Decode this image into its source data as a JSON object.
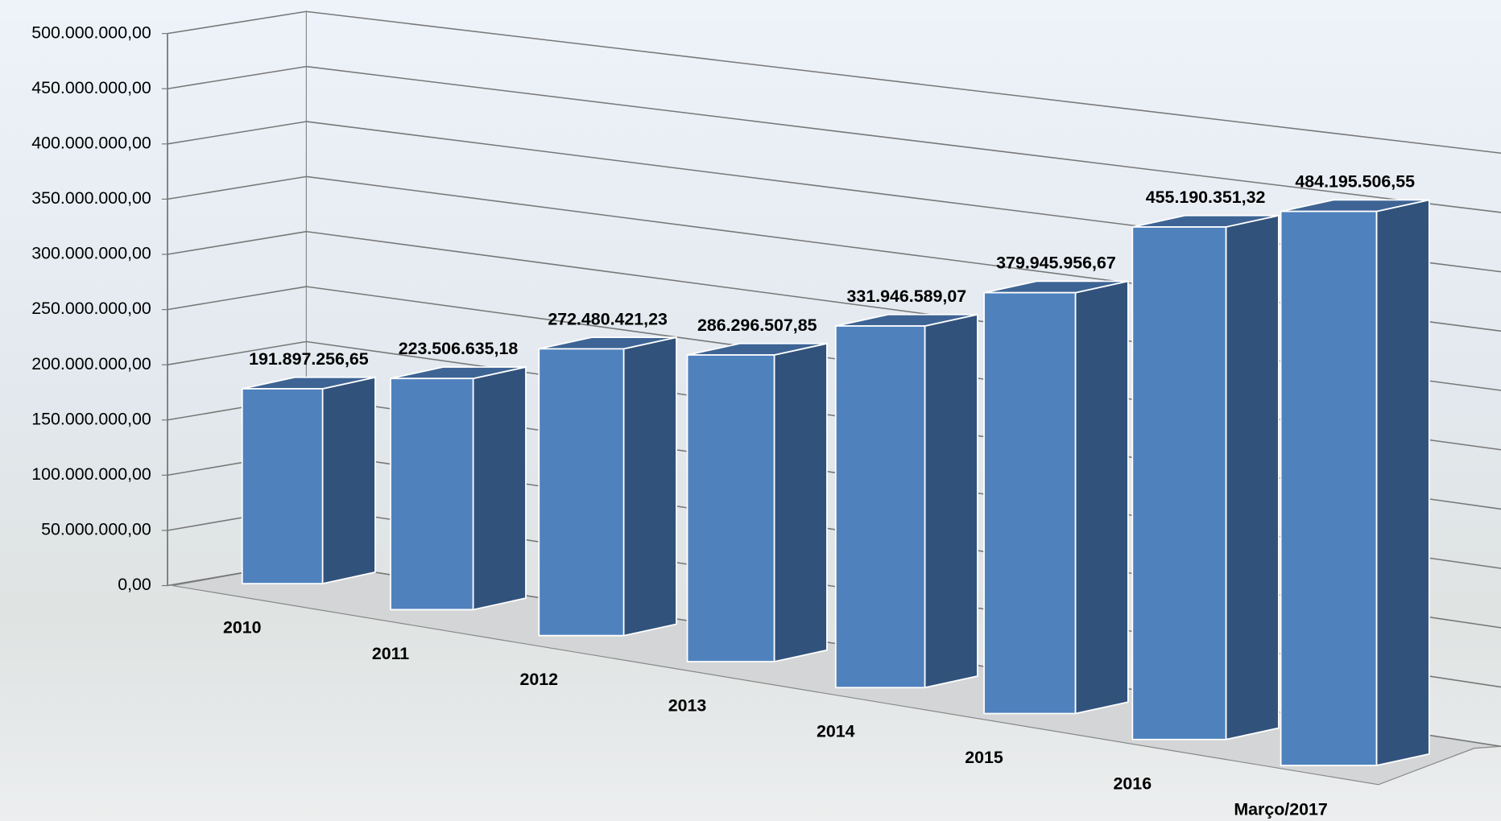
{
  "chart_data": {
    "type": "bar3d",
    "categories": [
      "2010",
      "2011",
      "2012",
      "2013",
      "2014",
      "2015",
      "2016",
      "Março/2017"
    ],
    "values": [
      191897256.65,
      223506635.18,
      272480421.23,
      286296507.85,
      331946589.07,
      379945956.67,
      455190351.32,
      484195506.55
    ],
    "value_labels": [
      "191.897.256,65",
      "223.506.635,18",
      "272.480.421,23",
      "286.296.507,85",
      "331.946.589,07",
      "379.945.956,67",
      "455.190.351,32",
      "484.195.506,55"
    ],
    "ylim": [
      0,
      500000000
    ],
    "yticks": [
      {
        "value": 0,
        "label": "0,00"
      },
      {
        "value": 50000000,
        "label": "50.000.000,00"
      },
      {
        "value": 100000000,
        "label": "100.000.000,00"
      },
      {
        "value": 150000000,
        "label": "150.000.000,00"
      },
      {
        "value": 200000000,
        "label": "200.000.000,00"
      },
      {
        "value": 250000000,
        "label": "250.000.000,00"
      },
      {
        "value": 300000000,
        "label": "300.000.000,00"
      },
      {
        "value": 350000000,
        "label": "350.000.000,00"
      },
      {
        "value": 400000000,
        "label": "400.000.000,00"
      },
      {
        "value": 450000000,
        "label": "450.000.000,00"
      },
      {
        "value": 500000000,
        "label": "500.000.000,00"
      }
    ],
    "grid": true,
    "color": "#4f81bd"
  }
}
